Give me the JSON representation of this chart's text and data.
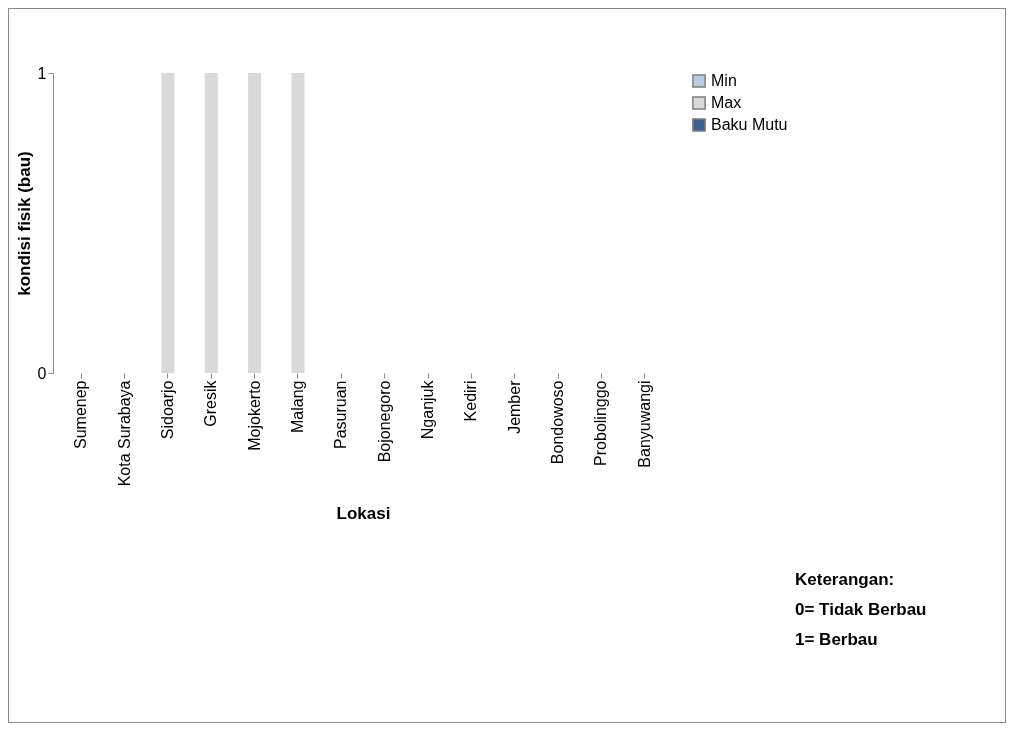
{
  "chart_data": {
    "type": "bar",
    "xlabel": "Lokasi",
    "ylabel": "kondisi fisik (bau)",
    "categories": [
      "Sumenep",
      "Kota Surabaya",
      "Sidoarjo",
      "Gresik",
      "Mojokerto",
      "Malang",
      "Pasuruan",
      "Bojonegoro",
      "Nganjuk",
      "Kediri",
      "Jember",
      "Bondowoso",
      "Probolinggo",
      "Banyuwangi"
    ],
    "series": [
      {
        "name": "Min",
        "color": "#b9cde5",
        "values": [
          0,
          0,
          0,
          0,
          0,
          0,
          0,
          0,
          0,
          0,
          0,
          0,
          0,
          0
        ]
      },
      {
        "name": "Max",
        "color": "#d9d9d9",
        "values": [
          0,
          0,
          1,
          1,
          1,
          1,
          0,
          0,
          0,
          0,
          0,
          0,
          0,
          0
        ]
      },
      {
        "name": "Baku Mutu",
        "color": "#3b6196",
        "values": [
          0,
          0,
          0,
          0,
          0,
          0,
          0,
          0,
          0,
          0,
          0,
          0,
          0,
          0
        ]
      }
    ],
    "ylim": [
      0,
      1
    ],
    "yticks": [
      0,
      1
    ],
    "legend": "right",
    "annotations": [
      "Keterangan:",
      "0= Tidak Berbau",
      "1= Berbau"
    ]
  }
}
